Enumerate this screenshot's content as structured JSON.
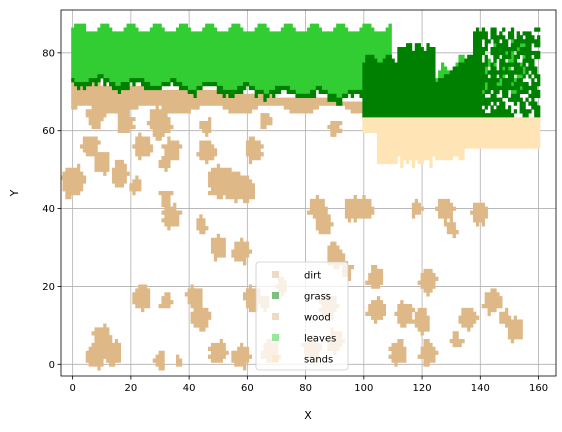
{
  "chart_data": {
    "type": "scatter",
    "title": "",
    "xlabel": "X",
    "ylabel": "Y",
    "xlim": [
      -4,
      166
    ],
    "ylim": [
      -3,
      91
    ],
    "xticks": [
      0,
      20,
      40,
      60,
      80,
      100,
      120,
      140,
      160
    ],
    "yticks": [
      0,
      20,
      40,
      60,
      80
    ],
    "grid": true,
    "legend_position": "lower-center",
    "marker": "square",
    "series": [
      {
        "name": "dirt",
        "color": "#deb887",
        "blobs": [
          [
            8,
            64,
            3
          ],
          [
            18,
            62,
            3
          ],
          [
            30,
            62,
            4
          ],
          [
            46,
            61,
            2
          ],
          [
            66,
            63,
            2
          ],
          [
            90,
            61,
            2
          ],
          [
            6,
            56,
            3
          ],
          [
            10,
            52,
            3
          ],
          [
            16,
            49,
            3
          ],
          [
            24,
            56,
            3
          ],
          [
            34,
            55,
            3
          ],
          [
            46,
            55,
            3
          ],
          [
            62,
            55,
            3
          ],
          [
            32,
            52,
            2
          ],
          [
            22,
            46,
            2
          ],
          [
            0,
            47,
            4
          ],
          [
            50,
            47,
            4
          ],
          [
            56,
            46,
            4
          ],
          [
            60,
            45,
            3
          ],
          [
            32,
            43,
            2
          ],
          [
            34,
            38,
            3
          ],
          [
            84,
            40,
            3
          ],
          [
            86,
            36,
            3
          ],
          [
            96,
            40,
            3
          ],
          [
            100,
            40,
            3
          ],
          [
            118,
            40,
            2
          ],
          [
            128,
            40,
            3
          ],
          [
            130,
            35,
            2
          ],
          [
            140,
            39,
            3
          ],
          [
            44,
            36,
            2
          ],
          [
            50,
            30,
            3
          ],
          [
            58,
            29,
            3
          ],
          [
            90,
            28,
            3
          ],
          [
            94,
            24,
            2
          ],
          [
            72,
            20,
            2
          ],
          [
            104,
            22,
            3
          ],
          [
            122,
            21,
            3
          ],
          [
            24,
            17,
            3
          ],
          [
            42,
            17,
            3
          ],
          [
            44,
            12,
            3
          ],
          [
            62,
            17,
            3
          ],
          [
            66,
            16,
            2
          ],
          [
            88,
            15,
            3
          ],
          [
            104,
            14,
            3
          ],
          [
            114,
            13,
            3
          ],
          [
            120,
            11,
            3
          ],
          [
            32,
            16,
            2
          ],
          [
            144,
            16,
            3
          ],
          [
            148,
            12,
            2
          ],
          [
            136,
            12,
            3
          ],
          [
            152,
            9,
            3
          ],
          [
            10,
            7,
            3
          ],
          [
            8,
            2,
            3
          ],
          [
            14,
            3,
            3
          ],
          [
            30,
            1,
            2
          ],
          [
            36,
            1,
            1
          ],
          [
            50,
            3,
            3
          ],
          [
            58,
            2,
            3
          ],
          [
            68,
            3,
            3
          ],
          [
            82,
            4,
            3
          ],
          [
            90,
            6,
            3
          ],
          [
            112,
            3,
            3
          ],
          [
            122,
            3,
            3
          ],
          [
            132,
            6,
            2
          ]
        ]
      },
      {
        "name": "grass",
        "color": "#008000",
        "region": {
          "x": [
            0,
            160
          ],
          "y": [
            63,
            82
          ]
        }
      },
      {
        "name": "wood",
        "color": "#deb887",
        "region": {
          "x": [
            0,
            160
          ],
          "y": [
            61,
            74
          ]
        }
      },
      {
        "name": "leaves",
        "color": "#32cd32",
        "region": {
          "x": [
            0,
            155
          ],
          "y": [
            66,
            88
          ]
        }
      },
      {
        "name": "sands",
        "color": "#ffe4b5",
        "region": {
          "x": [
            100,
            160
          ],
          "y": [
            51,
            64
          ]
        }
      }
    ]
  }
}
